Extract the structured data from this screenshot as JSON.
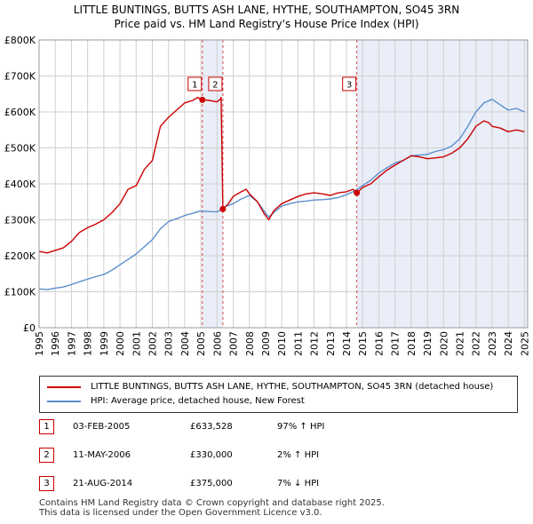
{
  "header": {
    "title_line1": "LITTLE BUNTINGS, BUTTS ASH LANE, HYTHE, SOUTHAMPTON, SO45 3RN",
    "title_line2": "Price paid vs. HM Land Registry's House Price Index (HPI)"
  },
  "chart_data": {
    "type": "line",
    "title": "LITTLE BUNTINGS, BUTTS ASH LANE, HYTHE, SOUTHAMPTON, SO45 3RN — Price paid vs. HM Land Registry's House Price Index (HPI)",
    "xlabel": "",
    "ylabel": "",
    "xlim": [
      1995,
      2025.2
    ],
    "ylim": [
      0,
      800000
    ],
    "grid": true,
    "y_ticks": [
      0,
      100000,
      200000,
      300000,
      400000,
      500000,
      600000,
      700000,
      800000
    ],
    "y_tick_labels": [
      "£0",
      "£100K",
      "£200K",
      "£300K",
      "£400K",
      "£500K",
      "£600K",
      "£700K",
      "£800K"
    ],
    "x_ticks": [
      1995,
      1996,
      1997,
      1998,
      1999,
      2000,
      2001,
      2002,
      2003,
      2004,
      2005,
      2006,
      2007,
      2008,
      2009,
      2010,
      2011,
      2012,
      2013,
      2014,
      2015,
      2016,
      2017,
      2018,
      2019,
      2020,
      2021,
      2022,
      2023,
      2024,
      2025
    ],
    "x_tick_labels": [
      "1995",
      "1996",
      "1997",
      "1998",
      "1999",
      "2000",
      "2001",
      "2002",
      "2003",
      "2004",
      "2005",
      "2006",
      "2007",
      "2008",
      "2009",
      "2010",
      "2011",
      "2012",
      "2013",
      "2014",
      "2015",
      "2016",
      "2017",
      "2018",
      "2019",
      "2020",
      "2021",
      "2022",
      "2023",
      "2024",
      "2025"
    ],
    "series": [
      {
        "name": "LITTLE BUNTINGS, BUTTS ASH LANE, HYTHE, SOUTHAMPTON, SO45 3RN (detached house)",
        "color": "#cc0000",
        "x": [
          1995.0,
          1995.5,
          1996.0,
          1996.5,
          1997.0,
          1997.5,
          1998.0,
          1998.5,
          1999.0,
          1999.5,
          2000.0,
          2000.5,
          2001.0,
          2001.5,
          2002.0,
          2002.5,
          2003.0,
          2003.5,
          2004.0,
          2004.5,
          2004.8,
          2005.09,
          2005.5,
          2006.0,
          2006.2,
          2006.25,
          2006.36,
          2006.7,
          2007.0,
          2007.5,
          2007.8,
          2008.0,
          2008.5,
          2008.9,
          2009.2,
          2009.5,
          2010.0,
          2010.5,
          2011.0,
          2011.5,
          2012.0,
          2012.5,
          2013.0,
          2013.5,
          2014.0,
          2014.4,
          2014.64,
          2015.0,
          2015.5,
          2016.0,
          2016.5,
          2017.0,
          2017.5,
          2018.0,
          2018.5,
          2019.0,
          2019.5,
          2020.0,
          2020.5,
          2021.0,
          2021.5,
          2022.0,
          2022.5,
          2022.8,
          2023.0,
          2023.5,
          2024.0,
          2024.5,
          2025.0
        ],
        "values": [
          212000,
          208000,
          215000,
          222000,
          240000,
          265000,
          278000,
          288000,
          300000,
          320000,
          345000,
          385000,
          395000,
          440000,
          465000,
          560000,
          585000,
          605000,
          625000,
          632000,
          640000,
          633528,
          632000,
          628000,
          635000,
          640000,
          330000,
          345000,
          365000,
          378000,
          385000,
          372000,
          350000,
          318000,
          300000,
          325000,
          345000,
          355000,
          365000,
          372000,
          375000,
          372000,
          368000,
          375000,
          378000,
          385000,
          375000,
          390000,
          400000,
          420000,
          438000,
          452000,
          465000,
          478000,
          475000,
          470000,
          472000,
          475000,
          485000,
          500000,
          525000,
          560000,
          575000,
          570000,
          560000,
          555000,
          545000,
          550000,
          545000
        ]
      },
      {
        "name": "HPI: Average price, detached house, New Forest",
        "color": "#5b8fcd",
        "x": [
          1995.0,
          1995.5,
          1996.0,
          1996.5,
          1997.0,
          1997.5,
          1998.0,
          1998.5,
          1999.0,
          1999.5,
          2000.0,
          2000.5,
          2001.0,
          2001.5,
          2002.0,
          2002.5,
          2003.0,
          2003.5,
          2004.0,
          2004.5,
          2005.0,
          2005.5,
          2006.0,
          2006.5,
          2007.0,
          2007.5,
          2008.0,
          2008.5,
          2008.9,
          2009.2,
          2009.5,
          2010.0,
          2010.5,
          2011.0,
          2011.5,
          2012.0,
          2012.5,
          2013.0,
          2013.5,
          2014.0,
          2014.5,
          2015.0,
          2015.5,
          2016.0,
          2016.5,
          2017.0,
          2017.5,
          2018.0,
          2018.5,
          2019.0,
          2019.5,
          2020.0,
          2020.5,
          2021.0,
          2021.5,
          2022.0,
          2022.5,
          2023.0,
          2023.5,
          2024.0,
          2024.5,
          2025.0
        ],
        "values": [
          108000,
          106000,
          110000,
          113000,
          120000,
          128000,
          135000,
          142000,
          148000,
          160000,
          175000,
          190000,
          205000,
          225000,
          245000,
          275000,
          295000,
          303000,
          312000,
          318000,
          325000,
          323000,
          322000,
          336000,
          345000,
          358000,
          368000,
          350000,
          325000,
          308000,
          320000,
          338000,
          345000,
          350000,
          352000,
          355000,
          356000,
          358000,
          362000,
          370000,
          380000,
          395000,
          410000,
          430000,
          445000,
          458000,
          465000,
          478000,
          480000,
          482000,
          490000,
          495000,
          505000,
          525000,
          560000,
          600000,
          625000,
          635000,
          620000,
          605000,
          610000,
          600000
        ]
      }
    ],
    "sales": [
      {
        "label": "1",
        "x": 2005.09,
        "value": 633528
      },
      {
        "label": "2",
        "x": 2006.36,
        "value": 330000
      },
      {
        "label": "3",
        "x": 2014.64,
        "value": 375000
      }
    ],
    "shaded_regions": [
      [
        2005.09,
        2006.36
      ],
      [
        2014.64,
        2025.2
      ]
    ]
  },
  "legend": {
    "property_label": "LITTLE BUNTINGS, BUTTS ASH LANE, HYTHE, SOUTHAMPTON, SO45 3RN (detached house)",
    "hpi_label": "HPI: Average price, detached house, New Forest",
    "property_color": "#cc0000",
    "hpi_color": "#5b8fcd"
  },
  "sales_table": [
    {
      "num": "1",
      "date": "03-FEB-2005",
      "price": "£633,528",
      "hpi": "97% ↑ HPI"
    },
    {
      "num": "2",
      "date": "11-MAY-2006",
      "price": "£330,000",
      "hpi": "2% ↑ HPI"
    },
    {
      "num": "3",
      "date": "21-AUG-2014",
      "price": "£375,000",
      "hpi": "7% ↓ HPI"
    }
  ],
  "footer": {
    "line1": "Contains HM Land Registry data © Crown copyright and database right 2025.",
    "line2": "This data is licensed under the Open Government Licence v3.0."
  }
}
